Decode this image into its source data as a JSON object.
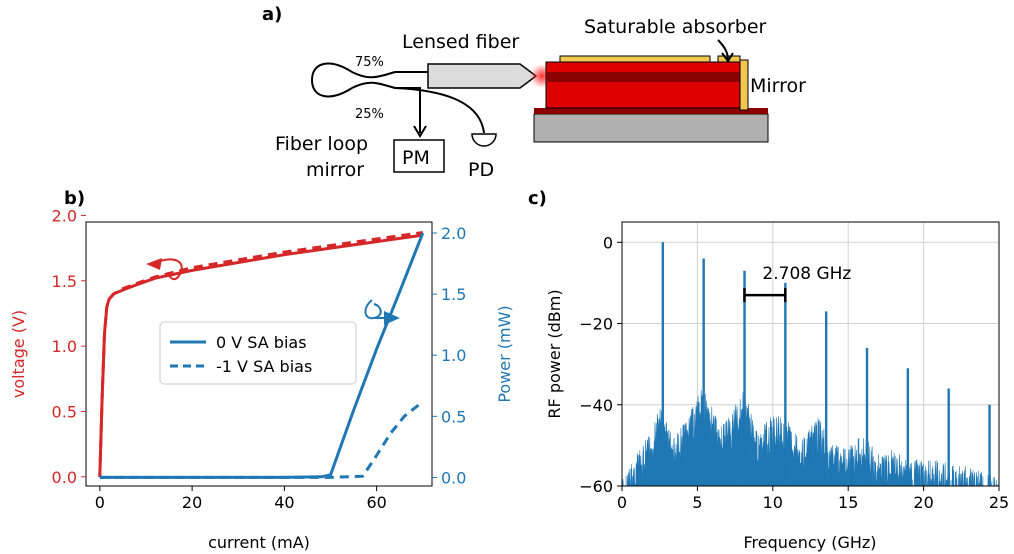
{
  "panels": {
    "a": {
      "label": "a)"
    },
    "b": {
      "label": "b)"
    },
    "c": {
      "label": "c)"
    }
  },
  "schematic": {
    "lensed_fiber": "Lensed fiber",
    "saturable_absorber": "Saturable absorber",
    "mirror": "Mirror",
    "split_75": "75%",
    "split_25": "25%",
    "fiber_loop_mirror_line1": "Fiber loop",
    "fiber_loop_mirror_line2": "mirror",
    "pm": "PM",
    "pd": "PD",
    "colors": {
      "laser_red": "#dd0000",
      "dark_red": "#8b0000",
      "gold": "#f0c850",
      "substrate": "#b0b0b0"
    }
  },
  "chart_data": [
    {
      "type": "line",
      "panel": "b",
      "xlabel": "current (mA)",
      "ylabel_left": "voltage (V)",
      "ylabel_right": "Power (mW)",
      "xlim": [
        -3,
        72
      ],
      "ylim_left": [
        -0.07,
        1.95
      ],
      "ylim_right": [
        -0.07,
        2.09
      ],
      "xticks": [
        "0",
        "20",
        "40",
        "60"
      ],
      "yticks_left": [
        "0.0",
        "0.5",
        "1.0",
        "1.5",
        "2.0"
      ],
      "yticks_right": [
        "0.0",
        "0.5",
        "1.0",
        "1.5",
        "2.0"
      ],
      "colors": {
        "voltage": "#d62728",
        "power": "#1f77b4"
      },
      "legend": {
        "placement": "center",
        "entries": [
          "0 V SA bias",
          "-1 V SA bias"
        ]
      },
      "series": [
        {
          "name": "0 V SA bias",
          "axis": "left",
          "style": "solid",
          "color": "#d62728",
          "x": [
            0,
            0.5,
            1,
            1.5,
            2,
            3,
            5,
            8,
            12,
            20,
            30,
            40,
            50,
            60,
            70
          ],
          "values": [
            0,
            0.6,
            1.1,
            1.3,
            1.36,
            1.4,
            1.43,
            1.47,
            1.52,
            1.58,
            1.64,
            1.7,
            1.75,
            1.8,
            1.85
          ]
        },
        {
          "name": "-1 V SA bias",
          "axis": "left",
          "style": "dashed",
          "color": "#d62728",
          "x": [
            0,
            0.5,
            1,
            1.5,
            2,
            3,
            5,
            8,
            12,
            20,
            30,
            40,
            50,
            60,
            70
          ],
          "values": [
            0,
            0.6,
            1.1,
            1.3,
            1.36,
            1.4,
            1.44,
            1.48,
            1.53,
            1.6,
            1.66,
            1.72,
            1.77,
            1.82,
            1.87
          ]
        },
        {
          "name": "0 V SA bias",
          "axis": "right",
          "style": "solid",
          "color": "#1f77b4",
          "x": [
            0,
            10,
            20,
            30,
            40,
            48,
            50,
            55,
            60,
            65,
            70
          ],
          "values": [
            0,
            0,
            0,
            0,
            0,
            0.005,
            0.02,
            0.55,
            1.05,
            1.52,
            2.0
          ]
        },
        {
          "name": "-1 V SA bias",
          "axis": "right",
          "style": "dashed",
          "color": "#1f77b4",
          "x": [
            0,
            10,
            20,
            30,
            40,
            50,
            57,
            60,
            63,
            66,
            70
          ],
          "values": [
            0,
            0,
            0,
            0,
            0,
            0,
            0.01,
            0.18,
            0.36,
            0.5,
            0.62
          ]
        }
      ]
    },
    {
      "type": "area",
      "panel": "c",
      "xlabel": "Frequency (GHz)",
      "ylabel": "RF power (dBm)",
      "xlim": [
        0,
        25
      ],
      "ylim": [
        -60,
        5
      ],
      "xticks": [
        "0",
        "5",
        "10",
        "15",
        "20",
        "25"
      ],
      "yticks": [
        "0",
        "−20",
        "−40",
        "−60"
      ],
      "grid": true,
      "color": "#1f77b4",
      "annotation": "2.708 GHz",
      "annotation_span_ghz": [
        8.12,
        10.83
      ],
      "peaks": {
        "x": [
          2.708,
          5.416,
          8.124,
          10.832,
          13.54,
          16.248,
          18.956,
          21.664,
          24.372
        ],
        "values": [
          0,
          -4,
          -7,
          -10,
          -17,
          -26,
          -31,
          -36,
          -40
        ]
      },
      "floor_envelope": {
        "x": [
          0,
          1,
          2,
          2.5,
          3.5,
          4.5,
          5.4,
          6.5,
          7.5,
          8.1,
          9,
          10,
          11,
          12,
          13,
          14,
          15,
          16,
          17,
          18,
          19,
          20,
          21,
          22,
          23,
          24,
          25
        ],
        "values": [
          -58,
          -52,
          -46,
          -40,
          -48,
          -42,
          -35,
          -45,
          -40,
          -36,
          -47,
          -42,
          -44,
          -48,
          -43,
          -49,
          -50,
          -47,
          -52,
          -51,
          -53,
          -54,
          -53,
          -55,
          -55,
          -56,
          -57
        ]
      }
    }
  ]
}
